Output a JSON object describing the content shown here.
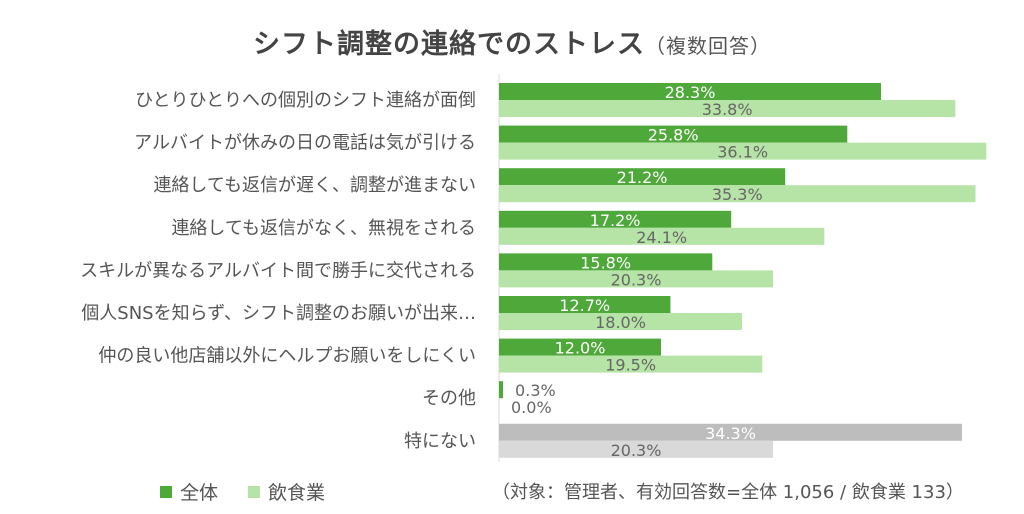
{
  "title": "シフト調整の連絡でのストレス",
  "subtitle": "（複数回答）",
  "note": "（対象：管理者、有効回答数=全体 1,056 / 飲食業 133）",
  "colors": {
    "all": "#4ea83a",
    "food": "#b6e3a6",
    "other_all": "#4ea83a",
    "other_food": "#b6e3a6",
    "none_all": "#bdbdbd",
    "none_food": "#d9d9d9",
    "axis": "#d9d9d9"
  },
  "chart_data": {
    "type": "bar",
    "orientation": "horizontal",
    "categories": [
      "ひとりひとりへの個別のシフト連絡が面倒",
      "アルバイトが休みの日の電話は気が引ける",
      "連絡しても返信が遅く、調整が進まない",
      "連絡しても返信がなく、無視をされる",
      "スキルが異なるアルバイト間で勝手に交代される",
      "個人SNSを知らず、シフト調整のお願いが出来…",
      "仲の良い他店舗以外にヘルプお願いをしにくい",
      "その他",
      "特にない"
    ],
    "series": [
      {
        "name": "全体",
        "values": [
          28.3,
          25.8,
          21.2,
          17.2,
          15.8,
          12.7,
          12.0,
          0.3,
          34.3
        ]
      },
      {
        "name": "飲食業",
        "values": [
          33.8,
          36.1,
          35.3,
          24.1,
          20.3,
          18.0,
          19.5,
          0.0,
          20.3
        ]
      }
    ],
    "value_format": "%",
    "xlim": [
      0,
      37
    ],
    "legend": "bottom-left",
    "grid": false
  }
}
